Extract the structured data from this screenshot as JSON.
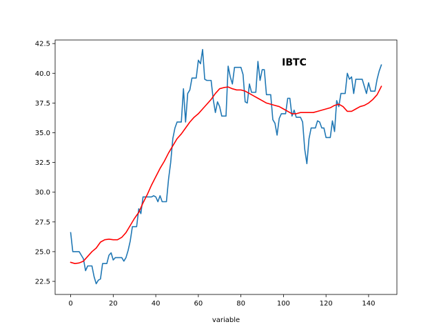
{
  "chart_data": {
    "type": "line",
    "title": "IBTC",
    "xlabel": "variable",
    "ylabel": "",
    "xlim": [
      -7.3,
      153.3
    ],
    "ylim": [
      21.4,
      42.8
    ],
    "xticks": [
      0,
      20,
      40,
      60,
      80,
      100,
      120,
      140
    ],
    "yticks": [
      22.5,
      25.0,
      27.5,
      30.0,
      32.5,
      35.0,
      37.5,
      40.0,
      42.5
    ],
    "xtick_labels": [
      "0",
      "20",
      "40",
      "60",
      "80",
      "100",
      "120",
      "140"
    ],
    "ytick_labels": [
      "22.5",
      "25.0",
      "27.5",
      "30.0",
      "32.5",
      "35.0",
      "37.5",
      "40.0",
      "42.5"
    ],
    "grid": false,
    "legend": "none",
    "series": [
      {
        "color": "#1f77b4",
        "points": [
          [
            0,
            26.6
          ],
          [
            1,
            25.0
          ],
          [
            2,
            25.0
          ],
          [
            3,
            25.0
          ],
          [
            4,
            25.0
          ],
          [
            5,
            24.7
          ],
          [
            6,
            24.4
          ],
          [
            7,
            23.4
          ],
          [
            8,
            23.8
          ],
          [
            9,
            23.8
          ],
          [
            10,
            23.8
          ],
          [
            11,
            22.9
          ],
          [
            12,
            22.3
          ],
          [
            13,
            22.6
          ],
          [
            14,
            22.7
          ],
          [
            15,
            24.0
          ],
          [
            16,
            24.0
          ],
          [
            17,
            24.0
          ],
          [
            18,
            24.7
          ],
          [
            19,
            24.9
          ],
          [
            20,
            24.3
          ],
          [
            21,
            24.5
          ],
          [
            22,
            24.5
          ],
          [
            23,
            24.5
          ],
          [
            24,
            24.5
          ],
          [
            25,
            24.2
          ],
          [
            26,
            24.5
          ],
          [
            27,
            25.1
          ],
          [
            28,
            25.9
          ],
          [
            29,
            27.1
          ],
          [
            30,
            27.1
          ],
          [
            31,
            27.1
          ],
          [
            32,
            28.6
          ],
          [
            33,
            28.2
          ],
          [
            34,
            29.6
          ],
          [
            35,
            29.6
          ],
          [
            36,
            29.6
          ],
          [
            37,
            29.6
          ],
          [
            38,
            29.6
          ],
          [
            39,
            29.7
          ],
          [
            40,
            29.6
          ],
          [
            41,
            29.2
          ],
          [
            42,
            29.7
          ],
          [
            43,
            29.2
          ],
          [
            44,
            29.2
          ],
          [
            45,
            29.2
          ],
          [
            46,
            31.1
          ],
          [
            47,
            32.5
          ],
          [
            48,
            34.5
          ],
          [
            49,
            35.4
          ],
          [
            50,
            35.9
          ],
          [
            51,
            35.9
          ],
          [
            52,
            35.9
          ],
          [
            53,
            38.7
          ],
          [
            54,
            35.9
          ],
          [
            55,
            38.3
          ],
          [
            56,
            38.6
          ],
          [
            57,
            39.6
          ],
          [
            58,
            39.6
          ],
          [
            59,
            39.6
          ],
          [
            60,
            41.1
          ],
          [
            61,
            40.8
          ],
          [
            62,
            42.0
          ],
          [
            63,
            39.5
          ],
          [
            64,
            39.4
          ],
          [
            65,
            39.4
          ],
          [
            66,
            39.4
          ],
          [
            67,
            37.8
          ],
          [
            68,
            36.7
          ],
          [
            69,
            37.6
          ],
          [
            70,
            37.2
          ],
          [
            71,
            36.4
          ],
          [
            72,
            36.4
          ],
          [
            73,
            36.4
          ],
          [
            74,
            40.6
          ],
          [
            75,
            39.7
          ],
          [
            76,
            39.1
          ],
          [
            77,
            40.5
          ],
          [
            78,
            40.5
          ],
          [
            79,
            40.5
          ],
          [
            80,
            40.5
          ],
          [
            81,
            39.9
          ],
          [
            82,
            37.6
          ],
          [
            83,
            37.5
          ],
          [
            84,
            39.1
          ],
          [
            85,
            38.4
          ],
          [
            86,
            38.4
          ],
          [
            87,
            38.4
          ],
          [
            88,
            41.0
          ],
          [
            89,
            39.4
          ],
          [
            90,
            40.3
          ],
          [
            91,
            40.3
          ],
          [
            92,
            38.2
          ],
          [
            93,
            38.2
          ],
          [
            94,
            38.2
          ],
          [
            95,
            36.1
          ],
          [
            96,
            35.8
          ],
          [
            97,
            34.8
          ],
          [
            98,
            36.2
          ],
          [
            99,
            36.6
          ],
          [
            100,
            36.6
          ],
          [
            101,
            36.6
          ],
          [
            102,
            37.9
          ],
          [
            103,
            37.9
          ],
          [
            104,
            36.4
          ],
          [
            105,
            36.9
          ],
          [
            106,
            36.3
          ],
          [
            107,
            36.3
          ],
          [
            108,
            36.3
          ],
          [
            109,
            35.9
          ],
          [
            110,
            33.6
          ],
          [
            111,
            32.4
          ],
          [
            112,
            34.5
          ],
          [
            113,
            35.4
          ],
          [
            114,
            35.4
          ],
          [
            115,
            35.4
          ],
          [
            116,
            36.0
          ],
          [
            117,
            35.9
          ],
          [
            118,
            35.4
          ],
          [
            119,
            35.4
          ],
          [
            120,
            34.6
          ],
          [
            121,
            34.6
          ],
          [
            122,
            34.6
          ],
          [
            123,
            36.0
          ],
          [
            124,
            35.1
          ],
          [
            125,
            37.7
          ],
          [
            126,
            37.2
          ],
          [
            127,
            38.3
          ],
          [
            128,
            38.3
          ],
          [
            129,
            38.3
          ],
          [
            130,
            40.0
          ],
          [
            131,
            39.5
          ],
          [
            132,
            39.7
          ],
          [
            133,
            38.3
          ],
          [
            134,
            39.5
          ],
          [
            135,
            39.5
          ],
          [
            136,
            39.5
          ],
          [
            137,
            39.5
          ],
          [
            138,
            38.9
          ],
          [
            139,
            38.3
          ],
          [
            140,
            39.2
          ],
          [
            141,
            38.5
          ],
          [
            142,
            38.5
          ],
          [
            143,
            38.5
          ],
          [
            144,
            39.5
          ],
          [
            145,
            40.2
          ],
          [
            146,
            40.7
          ]
        ]
      },
      {
        "color": "#ff0000",
        "points": [
          [
            0,
            24.1
          ],
          [
            2,
            24.0
          ],
          [
            4,
            24.05
          ],
          [
            6,
            24.2
          ],
          [
            8,
            24.6
          ],
          [
            10,
            25.0
          ],
          [
            12,
            25.3
          ],
          [
            14,
            25.8
          ],
          [
            16,
            26.0
          ],
          [
            18,
            26.05
          ],
          [
            20,
            26.0
          ],
          [
            22,
            26.0
          ],
          [
            24,
            26.2
          ],
          [
            26,
            26.6
          ],
          [
            28,
            27.2
          ],
          [
            30,
            27.8
          ],
          [
            32,
            28.3
          ],
          [
            34,
            29.1
          ],
          [
            36,
            29.8
          ],
          [
            38,
            30.6
          ],
          [
            40,
            31.3
          ],
          [
            42,
            32.0
          ],
          [
            44,
            32.6
          ],
          [
            46,
            33.3
          ],
          [
            48,
            33.9
          ],
          [
            50,
            34.5
          ],
          [
            52,
            34.9
          ],
          [
            54,
            35.4
          ],
          [
            56,
            35.9
          ],
          [
            58,
            36.3
          ],
          [
            60,
            36.6
          ],
          [
            62,
            37.0
          ],
          [
            64,
            37.4
          ],
          [
            66,
            37.8
          ],
          [
            68,
            38.3
          ],
          [
            70,
            38.7
          ],
          [
            72,
            38.8
          ],
          [
            74,
            38.85
          ],
          [
            76,
            38.7
          ],
          [
            78,
            38.6
          ],
          [
            80,
            38.6
          ],
          [
            82,
            38.5
          ],
          [
            84,
            38.3
          ],
          [
            86,
            38.1
          ],
          [
            88,
            37.9
          ],
          [
            90,
            37.7
          ],
          [
            92,
            37.5
          ],
          [
            94,
            37.4
          ],
          [
            96,
            37.3
          ],
          [
            98,
            37.2
          ],
          [
            100,
            37.0
          ],
          [
            102,
            36.8
          ],
          [
            104,
            36.6
          ],
          [
            106,
            36.6
          ],
          [
            108,
            36.7
          ],
          [
            110,
            36.7
          ],
          [
            112,
            36.7
          ],
          [
            114,
            36.7
          ],
          [
            116,
            36.8
          ],
          [
            118,
            36.9
          ],
          [
            120,
            37.0
          ],
          [
            122,
            37.1
          ],
          [
            124,
            37.3
          ],
          [
            126,
            37.4
          ],
          [
            128,
            37.2
          ],
          [
            130,
            36.8
          ],
          [
            132,
            36.8
          ],
          [
            134,
            37.0
          ],
          [
            136,
            37.2
          ],
          [
            138,
            37.3
          ],
          [
            140,
            37.5
          ],
          [
            142,
            37.8
          ],
          [
            144,
            38.2
          ],
          [
            146,
            38.9
          ]
        ]
      }
    ]
  }
}
